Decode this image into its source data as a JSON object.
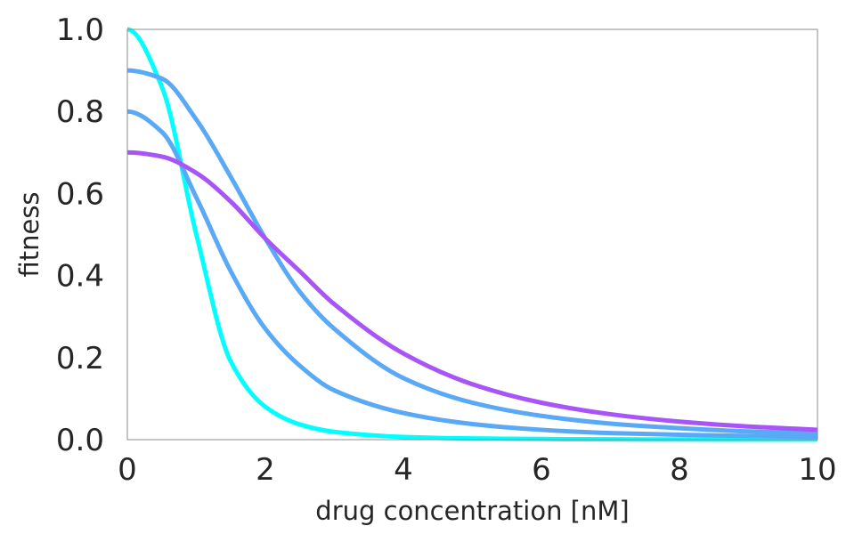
{
  "chart_data": {
    "type": "line",
    "title": "",
    "xlabel": "drug concentration [nM]",
    "ylabel": "fitness",
    "xlim": [
      0,
      10
    ],
    "ylim": [
      0,
      1.0
    ],
    "xticks": [
      0,
      2,
      4,
      6,
      8,
      10
    ],
    "xtick_labels": [
      "0",
      "2",
      "4",
      "6",
      "8",
      "10"
    ],
    "yticks": [
      0.0,
      0.2,
      0.4,
      0.6,
      0.8,
      1.0
    ],
    "ytick_labels": [
      "0.0",
      "0.2",
      "0.4",
      "0.6",
      "0.8",
      "1.0"
    ],
    "grid": false,
    "legend": "none",
    "x": [
      0,
      0.5,
      1,
      1.5,
      2,
      2.5,
      3,
      4,
      5,
      6,
      7,
      8,
      9,
      10
    ],
    "series": [
      {
        "color": "#00ffff",
        "values": [
          1.0,
          0.86,
          0.5,
          0.19,
          0.08,
          0.037,
          0.019,
          0.0066,
          0.0029,
          0.0015,
          0.0008,
          0.0005,
          0.0003,
          0.0002
        ]
      },
      {
        "color": "#5aa9f7",
        "values": [
          0.8,
          0.75,
          0.59,
          0.41,
          0.27,
          0.18,
          0.12,
          0.065,
          0.038,
          0.024,
          0.016,
          0.012,
          0.009,
          0.007
        ]
      },
      {
        "color": "#5aa9f7",
        "values": [
          0.9,
          0.88,
          0.78,
          0.64,
          0.49,
          0.36,
          0.27,
          0.15,
          0.09,
          0.058,
          0.039,
          0.028,
          0.02,
          0.015
        ]
      },
      {
        "color": "#a855f7",
        "values": [
          0.7,
          0.69,
          0.65,
          0.58,
          0.49,
          0.41,
          0.33,
          0.21,
          0.135,
          0.09,
          0.062,
          0.044,
          0.032,
          0.024
        ]
      }
    ]
  }
}
